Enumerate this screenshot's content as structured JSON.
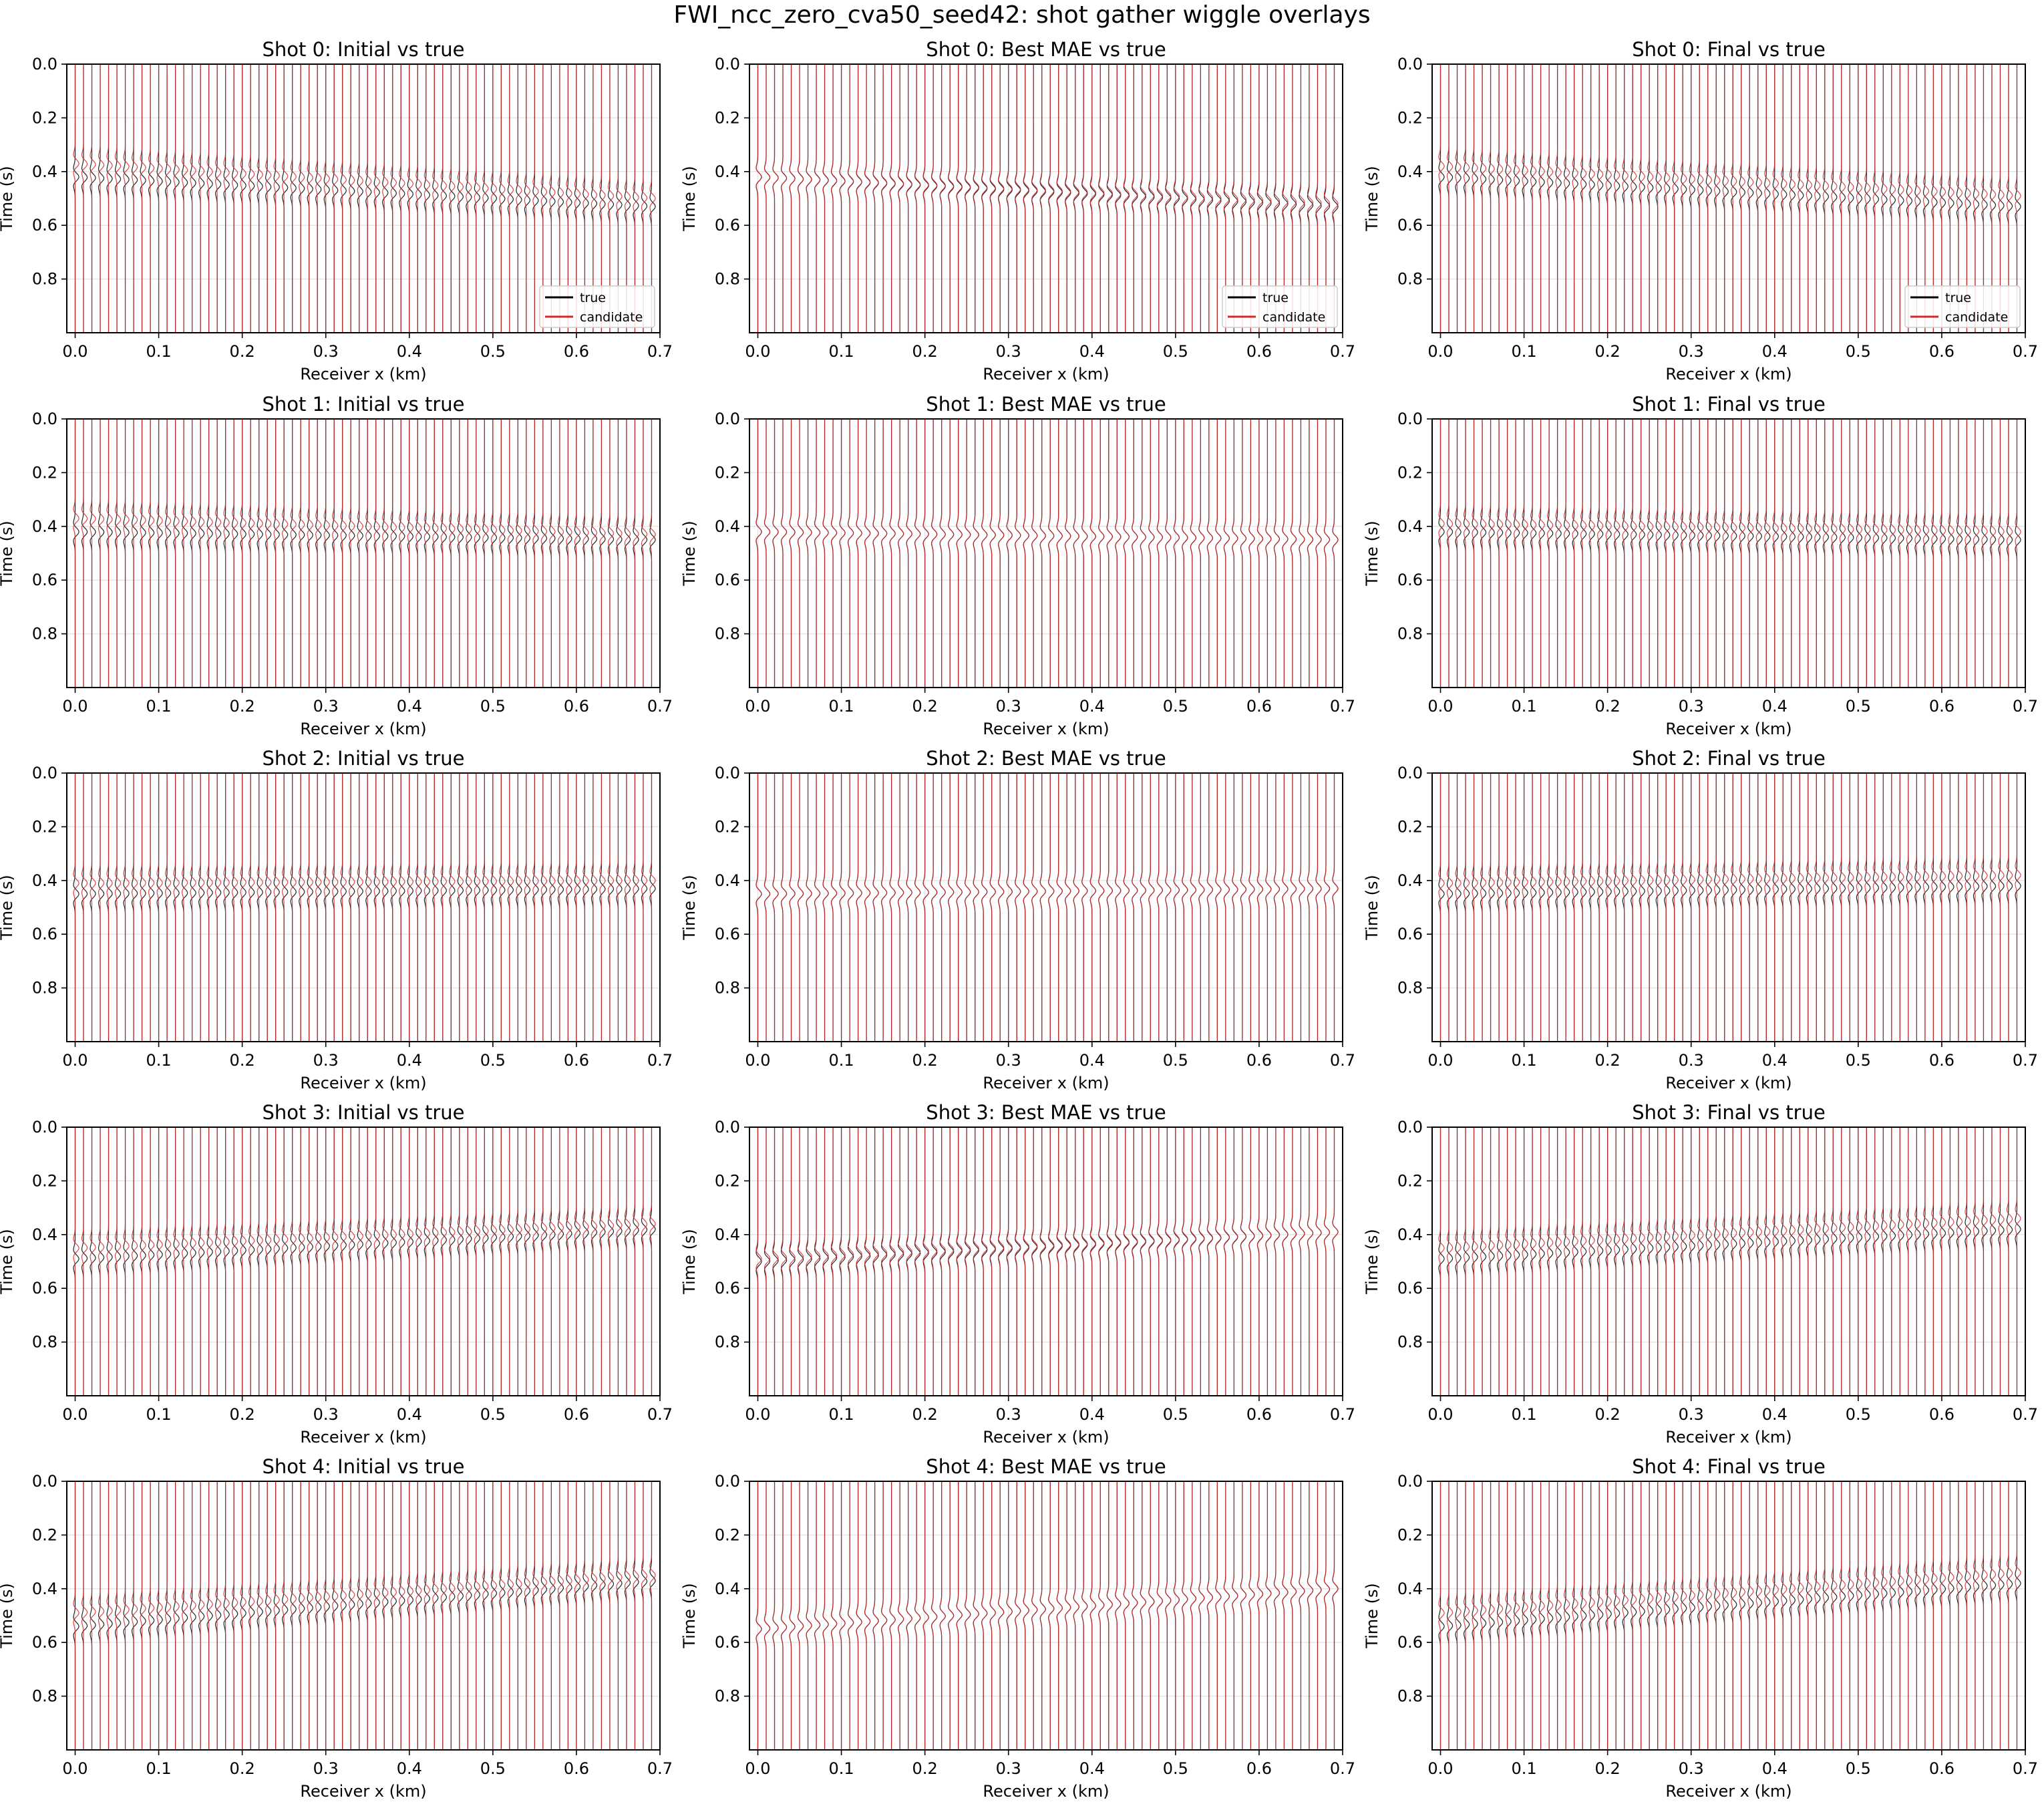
{
  "figure": {
    "title": "FWI_ncc_zero_cva50_seed42: shot gather wiggle overlays"
  },
  "chart_data": {
    "type": "line",
    "layout": {
      "rows": 5,
      "cols": 3
    },
    "columns": [
      "Initial",
      "Best MAE",
      "Final"
    ],
    "xlabel": "Receiver x (km)",
    "ylabel": "Time (s)",
    "xlim": [
      -0.01,
      0.7
    ],
    "ylim": [
      0.0,
      1.0
    ],
    "y_inverted": true,
    "xticks": [
      0.0,
      0.1,
      0.2,
      0.3,
      0.4,
      0.5,
      0.6,
      0.7
    ],
    "xtick_labels": [
      "0.0",
      "0.1",
      "0.2",
      "0.3",
      "0.4",
      "0.5",
      "0.6",
      "0.7"
    ],
    "yticks": [
      0.0,
      0.2,
      0.4,
      0.6,
      0.8
    ],
    "ytick_labels": [
      "0.0",
      "0.2",
      "0.4",
      "0.6",
      "0.8"
    ],
    "grid": true,
    "legend": {
      "location": "lower-right",
      "only_in_first_row": true
    },
    "receivers": {
      "count": 70,
      "x_start_km": 0.0,
      "x_end_km": 0.69
    },
    "series": [
      {
        "name": "true",
        "color": "#000000"
      },
      {
        "name": "candidate",
        "color": "#d62728"
      }
    ],
    "panels": [
      {
        "title": "Shot 0: Initial vs true",
        "true_arrival_s": [
          0.42,
          0.53
        ],
        "candidate_arrival_s": [
          0.37,
          0.5
        ]
      },
      {
        "title": "Shot 0: Best MAE vs true",
        "true_arrival_s": [
          0.42,
          0.53
        ],
        "candidate_arrival_s": [
          0.42,
          0.52
        ]
      },
      {
        "title": "Shot 0: Final vs true",
        "true_arrival_s": [
          0.42,
          0.53
        ],
        "candidate_arrival_s": [
          0.38,
          0.49
        ]
      },
      {
        "title": "Shot 1: Initial vs true",
        "true_arrival_s": [
          0.42,
          0.45
        ],
        "candidate_arrival_s": [
          0.37,
          0.43
        ]
      },
      {
        "title": "Shot 1: Best MAE vs true",
        "true_arrival_s": [
          0.42,
          0.45
        ],
        "candidate_arrival_s": [
          0.42,
          0.45
        ]
      },
      {
        "title": "Shot 1: Final vs true",
        "true_arrival_s": [
          0.42,
          0.45
        ],
        "candidate_arrival_s": [
          0.39,
          0.42
        ]
      },
      {
        "title": "Shot 2: Initial vs true",
        "true_arrival_s": [
          0.45,
          0.43
        ],
        "candidate_arrival_s": [
          0.41,
          0.4
        ]
      },
      {
        "title": "Shot 2: Best MAE vs true",
        "true_arrival_s": [
          0.45,
          0.43
        ],
        "candidate_arrival_s": [
          0.45,
          0.43
        ]
      },
      {
        "title": "Shot 2: Final vs true",
        "true_arrival_s": [
          0.45,
          0.42
        ],
        "candidate_arrival_s": [
          0.41,
          0.38
        ]
      },
      {
        "title": "Shot 3: Initial vs true",
        "true_arrival_s": [
          0.49,
          0.38
        ],
        "candidate_arrival_s": [
          0.45,
          0.36
        ]
      },
      {
        "title": "Shot 3: Best MAE vs true",
        "true_arrival_s": [
          0.5,
          0.39
        ],
        "candidate_arrival_s": [
          0.49,
          0.39
        ]
      },
      {
        "title": "Shot 3: Final vs true",
        "true_arrival_s": [
          0.49,
          0.38
        ],
        "candidate_arrival_s": [
          0.45,
          0.34
        ]
      },
      {
        "title": "Shot 4: Initial vs true",
        "true_arrival_s": [
          0.54,
          0.37
        ],
        "candidate_arrival_s": [
          0.49,
          0.35
        ]
      },
      {
        "title": "Shot 4: Best MAE vs true",
        "true_arrival_s": [
          0.55,
          0.4
        ],
        "candidate_arrival_s": [
          0.55,
          0.4
        ]
      },
      {
        "title": "Shot 4: Final vs true",
        "true_arrival_s": [
          0.54,
          0.38
        ],
        "candidate_arrival_s": [
          0.49,
          0.34
        ]
      }
    ]
  }
}
